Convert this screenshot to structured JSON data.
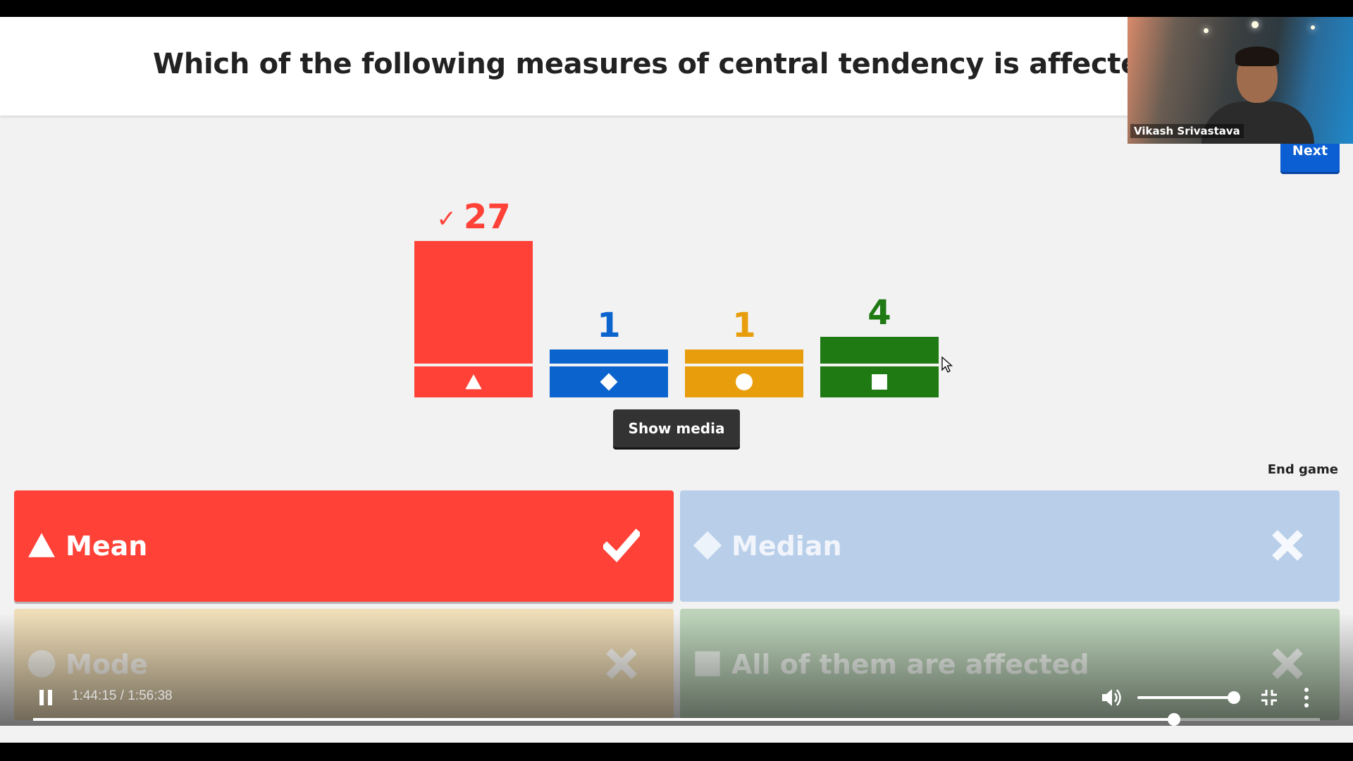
{
  "question": {
    "text": "Which of the following measures of central tendency is affected by out"
  },
  "webcam": {
    "name": "Vikash Srivastava"
  },
  "header": {
    "next_label": "Next"
  },
  "chart_data": {
    "type": "bar",
    "categories": [
      "triangle",
      "diamond",
      "circle",
      "square"
    ],
    "values": [
      27,
      1,
      1,
      4
    ],
    "count_labels": [
      "27",
      "1",
      "1",
      "4"
    ],
    "correct_index": 0,
    "colors": [
      "#ff4137",
      "#0b63ce",
      "#e89e0c",
      "#1f7a14"
    ],
    "title": "",
    "xlabel": "",
    "ylabel": ""
  },
  "controls": {
    "show_media_label": "Show media",
    "end_game_label": "End game"
  },
  "answers": [
    {
      "shape": "triangle",
      "label": "Mean",
      "correct": true,
      "color": "#ff4137"
    },
    {
      "shape": "diamond",
      "label": "Median",
      "correct": false,
      "color": "#0b63ce"
    },
    {
      "shape": "circle",
      "label": "Mode",
      "correct": false,
      "color": "#e89e0c"
    },
    {
      "shape": "square",
      "label": "All of them are affected",
      "correct": false,
      "color": "#1f7a14"
    }
  ],
  "player": {
    "time": "1:44:15 / 1:56:38",
    "progress": 0.8866,
    "volume": 0.95
  }
}
